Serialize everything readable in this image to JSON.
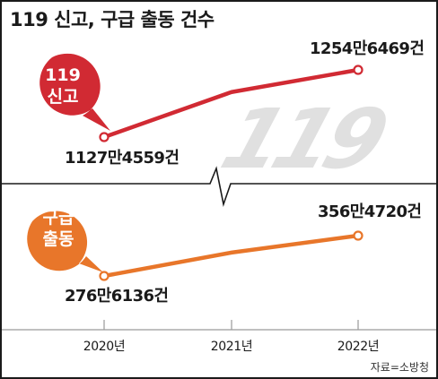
{
  "title": "119 신고, 구급 출동 건수",
  "source": "자료=소방청",
  "chart_data": [
    {
      "type": "line",
      "categories": [
        "2020년",
        "2021년",
        "2022년"
      ],
      "x": [
        "2020년",
        "2022년"
      ],
      "values": [
        11274559,
        12546469
      ],
      "series_name": [
        "119",
        "신고"
      ],
      "labels": {
        "first": "1127만4559건",
        "last": "1254만6469건"
      },
      "color": "#d12a33"
    },
    {
      "type": "line",
      "categories": [
        "2020년",
        "2021년",
        "2022년"
      ],
      "x": [
        "2020년",
        "2022년"
      ],
      "values": [
        2766136,
        3564720
      ],
      "series_name": [
        "구급",
        "출동"
      ],
      "labels": {
        "first": "276만6136건",
        "last": "356만4720건"
      },
      "color": "#e8762a"
    }
  ],
  "x_ticks": [
    "2020년",
    "2021년",
    "2022년"
  ],
  "watermark": "119",
  "colors": {
    "red": "#d12a33",
    "orange": "#e8762a",
    "gray": "#9a9a9a",
    "text": "#1a1a1a"
  }
}
